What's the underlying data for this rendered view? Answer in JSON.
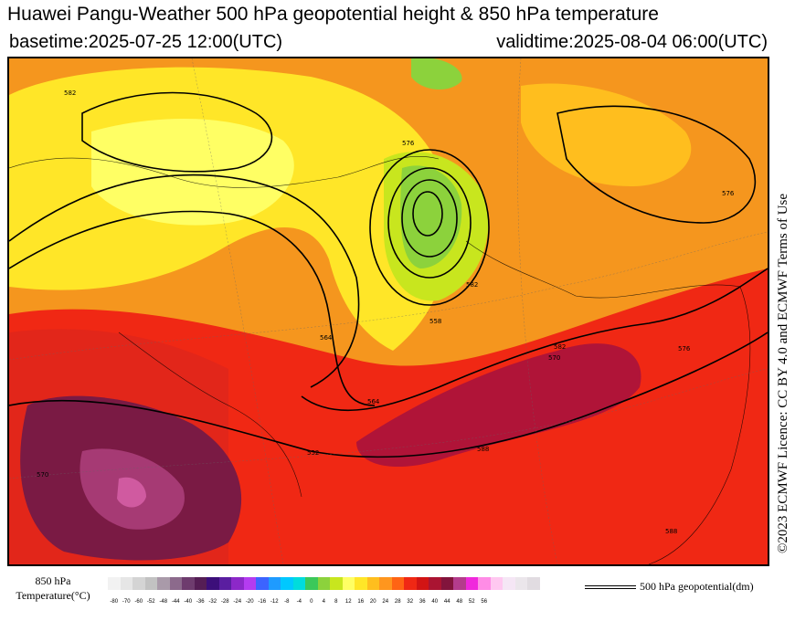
{
  "header": {
    "title": "Huawei Pangu-Weather 500 hPa geopotential height & 850 hPa temperature",
    "basetime": "basetime:2025-07-25 12:00(UTC)",
    "validtime": "validtime:2025-08-04 06:00(UTC)"
  },
  "credit": "©2023 ECMWF Licence: CC BY 4.0 and ECMWF Terms of Use",
  "legend": {
    "temperature_title_line1": "850 hPa",
    "temperature_title_line2": "Temperature(°C)",
    "contour_label": "500 hPa geopotential(dm)",
    "ticks": [
      "-80",
      "-70",
      "-60",
      "-52",
      "-48",
      "-44",
      "-40",
      "-36",
      "-32",
      "-28",
      "-24",
      "-20",
      "-16",
      "-12",
      "-8",
      "-4",
      "0",
      "4",
      "8",
      "12",
      "16",
      "20",
      "24",
      "28",
      "32",
      "36",
      "40",
      "44",
      "48",
      "52",
      "56"
    ],
    "colors": [
      "#f2f2f2",
      "#e6e6e6",
      "#d4d4d4",
      "#c2c2c2",
      "#a99aa9",
      "#8c6a8c",
      "#6e3c6e",
      "#551e55",
      "#3c0f7a",
      "#5a1ea0",
      "#8c28c8",
      "#b43cf0",
      "#3c64ff",
      "#1e9bff",
      "#00c8ff",
      "#00dcdc",
      "#3cc85a",
      "#8cd23c",
      "#c8e61e",
      "#ffff64",
      "#ffe628",
      "#ffbe1e",
      "#ff961e",
      "#ff6414",
      "#f02814",
      "#d21414",
      "#aa1432",
      "#82143c",
      "#b43c8c",
      "#f028dc",
      "#ff8ce6",
      "#ffc8f0",
      "#f5e6f5",
      "#ebe6eb",
      "#e1dce1"
    ]
  },
  "map": {
    "contour_labels": [
      "552",
      "558",
      "564",
      "570",
      "576",
      "582",
      "588",
      "576",
      "588",
      "582",
      "570",
      "576",
      "564",
      "582"
    ]
  }
}
